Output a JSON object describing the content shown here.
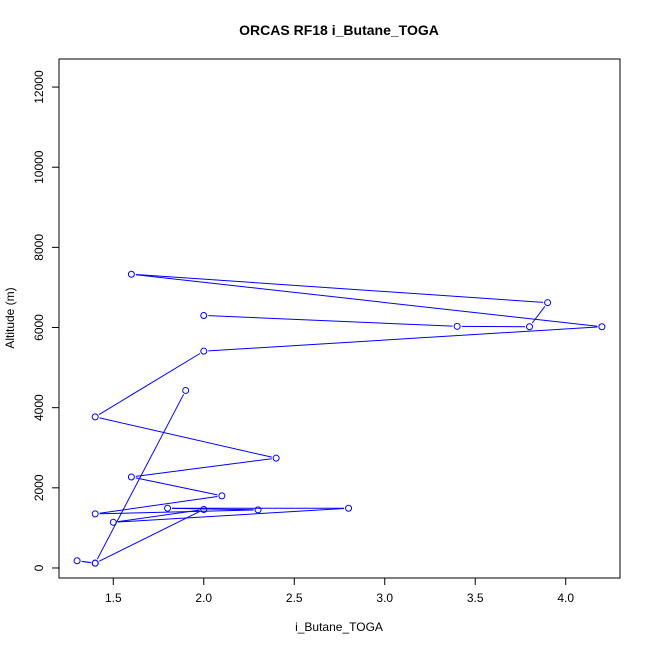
{
  "chart_data": {
    "type": "line",
    "title": "ORCAS RF18 i_Butane_TOGA",
    "xlabel": "i_Butane_TOGA",
    "ylabel": "Altitude (m)",
    "xlim": [
      1.2,
      4.3
    ],
    "ylim": [
      -250,
      12700
    ],
    "x_ticks": [
      1.5,
      2.0,
      2.5,
      3.0,
      3.5,
      4.0
    ],
    "x_tick_labels": [
      "1.5",
      "2.0",
      "2.5",
      "3.0",
      "3.5",
      "4.0"
    ],
    "y_ticks": [
      0,
      2000,
      4000,
      6000,
      8000,
      10000,
      12000
    ],
    "y_tick_labels": [
      "0",
      "2000",
      "4000",
      "6000",
      "8000",
      "10000",
      "12000"
    ],
    "series_color": "#0000ff",
    "series": [
      {
        "x": [
          1.9,
          1.4,
          1.3,
          1.4,
          2.0,
          1.5,
          2.8,
          1.8,
          2.3,
          1.4,
          2.1,
          1.6,
          2.4,
          1.4,
          2.0,
          4.2,
          1.6,
          3.9,
          3.8,
          3.4,
          2.0
        ],
        "y": [
          4430,
          120,
          180,
          120,
          1460,
          1140,
          1490,
          1490,
          1450,
          1350,
          1800,
          2270,
          2740,
          3770,
          5410,
          6020,
          7330,
          6620,
          6020,
          6030,
          6300
        ]
      }
    ],
    "grid": false,
    "legend": "none"
  }
}
